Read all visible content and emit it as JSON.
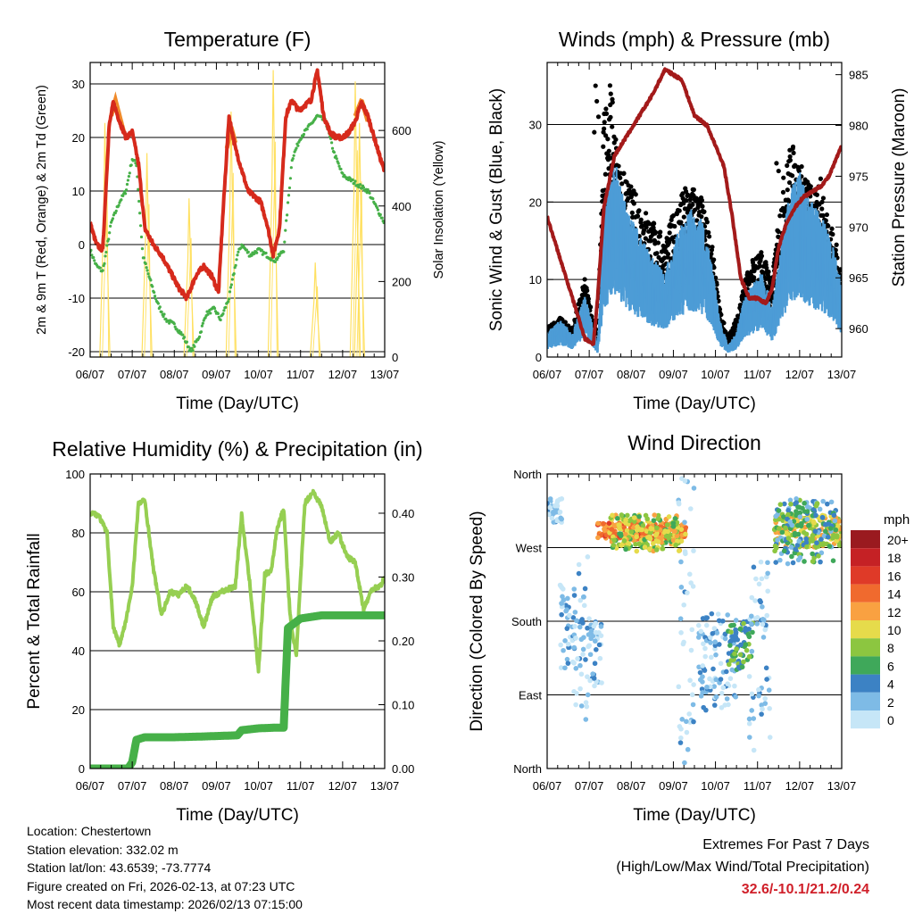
{
  "colors": {
    "temp": "#d62a1c",
    "temp9m": "#f08a2a",
    "dew": "#46b048",
    "solar": "#ffe060",
    "wind": "#4d9cd6",
    "gust": "#000000",
    "pressure": "#a31a1a",
    "rh": "#96cf52",
    "precip": "#46b048",
    "extremes": "#d0202a"
  },
  "time_ticks": [
    "06/07",
    "07/07",
    "08/07",
    "09/07",
    "10/07",
    "11/07",
    "12/07",
    "13/07"
  ],
  "chart_data": [
    {
      "type": "line",
      "id": "temperature",
      "title": "Temperature (F)",
      "xlabel": "Time (Day/UTC)",
      "ylabel": "2m & 9m T (Red, Orange) & 2m Td (Green)",
      "ylabel_right": "Solar Insolation (Yellow)",
      "ylim": [
        -21,
        34
      ],
      "yticks": [
        -20,
        -10,
        0,
        10,
        20,
        30
      ],
      "ylim_right": [
        0,
        780
      ],
      "yticks_right": [
        0,
        200,
        400,
        600
      ],
      "xlim": [
        0,
        7
      ],
      "series": [
        {
          "name": "2m T",
          "color_key": "temp",
          "x": [
            0,
            0.15,
            0.3,
            0.45,
            0.55,
            0.7,
            0.85,
            1.0,
            1.15,
            1.3,
            1.5,
            1.7,
            1.9,
            2.1,
            2.3,
            2.5,
            2.7,
            2.9,
            3.05,
            3.15,
            3.3,
            3.45,
            3.6,
            3.75,
            3.9,
            4.05,
            4.2,
            4.35,
            4.5,
            4.65,
            4.8,
            4.95,
            5.1,
            5.25,
            5.4,
            5.55,
            5.7,
            5.85,
            6.0,
            6.15,
            6.3,
            6.45,
            6.6,
            6.75,
            6.9,
            7.0
          ],
          "values": [
            4,
            0,
            -1,
            22,
            26.5,
            23,
            20,
            21,
            15,
            3,
            0,
            -2,
            -5,
            -8,
            -10,
            -6,
            -4,
            -6,
            -9,
            5,
            24,
            18,
            14,
            10,
            9,
            8,
            4,
            -2,
            3,
            24,
            27,
            25,
            26,
            27,
            32.5,
            24,
            21,
            20,
            20,
            21,
            23,
            26.5,
            24,
            20,
            16,
            13.5
          ]
        },
        {
          "name": "2m Td",
          "color_key": "dew",
          "x": [
            0,
            0.15,
            0.3,
            0.5,
            0.7,
            0.85,
            1.0,
            1.1,
            1.25,
            1.4,
            1.6,
            1.8,
            2.0,
            2.2,
            2.4,
            2.6,
            2.75,
            2.95,
            3.1,
            3.3,
            3.5,
            3.6,
            3.8,
            4.0,
            4.2,
            4.4,
            4.6,
            4.8,
            5.0,
            5.2,
            5.4,
            5.6,
            5.8,
            6.0,
            6.2,
            6.4,
            6.6,
            6.8,
            7.0
          ],
          "values": [
            -1,
            -4,
            -5,
            4,
            8,
            10,
            16,
            15,
            -2,
            -6,
            -11,
            -14,
            -15,
            -17,
            -20,
            -17,
            -13,
            -12,
            -14,
            -10,
            -2,
            0,
            -2,
            -1,
            -2,
            -3,
            -1,
            16,
            20,
            22,
            24,
            23,
            17,
            13,
            12,
            11,
            10,
            7,
            4
          ]
        },
        {
          "name": "9m T",
          "color_key": "temp9m",
          "x": [
            0.5,
            0.6,
            0.7,
            0.8,
            3.25,
            3.35,
            3.45,
            6.3,
            6.45,
            6.6
          ],
          "values": [
            24,
            27,
            24,
            21,
            18,
            22,
            19,
            24,
            27,
            23
          ]
        }
      ],
      "solar_peaks": [
        {
          "x": 0.35,
          "value": 620
        },
        {
          "x": 1.35,
          "value": 540
        },
        {
          "x": 2.35,
          "value": 420
        },
        {
          "x": 3.35,
          "value": 650
        },
        {
          "x": 4.35,
          "value": 760
        },
        {
          "x": 5.35,
          "value": 250
        },
        {
          "x": 6.3,
          "value": 730
        },
        {
          "x": 6.4,
          "value": 620
        }
      ]
    },
    {
      "type": "scatter",
      "id": "winds",
      "title": "Winds (mph) & Pressure (mb)",
      "xlabel": "Time (Day/UTC)",
      "ylabel": "Sonic Wind & Gust (Blue, Black)",
      "ylabel_right": "Station Pressure (Maroon)",
      "ylim": [
        0,
        38
      ],
      "yticks": [
        0,
        10,
        20,
        30
      ],
      "ylim_right": [
        957.2,
        986.2
      ],
      "yticks_right": [
        960,
        965,
        970,
        975,
        980,
        985
      ],
      "xlim": [
        0,
        7
      ],
      "wind_mean": {
        "x": [
          0,
          0.3,
          0.6,
          0.9,
          1.2,
          1.35,
          1.6,
          1.9,
          2.2,
          2.5,
          2.8,
          3.1,
          3.4,
          3.7,
          3.9,
          4.1,
          4.3,
          4.5,
          4.7,
          4.9,
          5.1,
          5.35,
          5.6,
          5.8,
          6.0,
          6.2,
          6.4,
          6.6,
          6.8,
          7.0
        ],
        "values": [
          2,
          3,
          2,
          5,
          1,
          12,
          16,
          12,
          10,
          8,
          7,
          10,
          12,
          11,
          8,
          3,
          1,
          2,
          5,
          6,
          7,
          4,
          10,
          14,
          15,
          13,
          12,
          11,
          9,
          6
        ]
      },
      "gust_mean": {
        "x": [
          0,
          0.3,
          0.6,
          0.9,
          1.2,
          1.35,
          1.5,
          1.7,
          1.9,
          2.2,
          2.5,
          2.8,
          3.1,
          3.4,
          3.7,
          3.9,
          4.1,
          4.3,
          4.5,
          4.7,
          4.9,
          5.1,
          5.35,
          5.6,
          5.8,
          6.0,
          6.2,
          6.4,
          6.6,
          6.8,
          7.0
        ],
        "values": [
          3,
          4,
          3,
          8,
          2,
          25,
          28,
          20,
          18,
          16,
          14,
          12,
          16,
          18,
          16,
          12,
          5,
          2,
          4,
          8,
          10,
          11,
          8,
          18,
          22,
          20,
          18,
          17,
          16,
          13,
          9
        ]
      },
      "pressure": {
        "x": [
          0,
          0.3,
          0.6,
          0.9,
          1.1,
          1.2,
          1.35,
          1.6,
          1.9,
          2.2,
          2.5,
          2.8,
          3.0,
          3.2,
          3.5,
          3.8,
          4.0,
          4.2,
          4.4,
          4.6,
          4.8,
          5.0,
          5.2,
          5.35,
          5.5,
          5.7,
          5.9,
          6.1,
          6.3,
          6.5,
          6.7,
          6.9,
          7.0
        ],
        "values": [
          971,
          967,
          963,
          959,
          958.5,
          963,
          972,
          977,
          979,
          981,
          983,
          985.5,
          985,
          984.5,
          981,
          980,
          978,
          976,
          971,
          965,
          963,
          963,
          962.5,
          964,
          968,
          970.5,
          972,
          973,
          973.5,
          974,
          975,
          977,
          978
        ]
      }
    },
    {
      "type": "line",
      "id": "humidity",
      "title": "Relative Humidity (%) & Precipitation (in)",
      "xlabel": "Time (Day/UTC)",
      "ylabel": "Percent & Total Rainfall",
      "ylim": [
        0,
        100
      ],
      "yticks": [
        0,
        20,
        40,
        60,
        80,
        100
      ],
      "ylim_right": [
        0,
        0.4615
      ],
      "yticks_right": [
        0.0,
        0.1,
        0.2,
        0.3,
        0.4
      ],
      "yticks_right_labels": [
        "0.00",
        "0.10",
        "0.20",
        "0.30",
        "0.40"
      ],
      "xlim": [
        0,
        7
      ],
      "series": [
        {
          "name": "Relative Humidity",
          "color_key": "rh",
          "x": [
            0,
            0.2,
            0.4,
            0.55,
            0.7,
            0.85,
            1.0,
            1.15,
            1.3,
            1.5,
            1.7,
            1.9,
            2.1,
            2.3,
            2.5,
            2.7,
            2.9,
            3.1,
            3.3,
            3.45,
            3.6,
            3.8,
            4.0,
            4.15,
            4.3,
            4.45,
            4.6,
            4.75,
            4.9,
            5.1,
            5.3,
            5.5,
            5.7,
            5.9,
            6.1,
            6.3,
            6.5,
            6.7,
            6.9,
            7.0
          ],
          "values": [
            87,
            86,
            80,
            48,
            42,
            50,
            62,
            90,
            91,
            68,
            52,
            60,
            59,
            62,
            57,
            48,
            58,
            60,
            61,
            62,
            86,
            62,
            33,
            66,
            67,
            82,
            88,
            52,
            38,
            90,
            94,
            89,
            77,
            80,
            72,
            70,
            54,
            61,
            62,
            65
          ]
        },
        {
          "name": "Total Precipitation",
          "color_key": "precip",
          "axis": "right",
          "x": [
            0,
            0.9,
            1.0,
            1.1,
            1.3,
            2.0,
            2.6,
            3.5,
            3.6,
            4.0,
            4.4,
            4.6,
            4.7,
            5.0,
            5.5,
            6.0,
            7.0
          ],
          "values": [
            0,
            0,
            0.01,
            0.045,
            0.049,
            0.049,
            0.05,
            0.052,
            0.06,
            0.063,
            0.064,
            0.064,
            0.22,
            0.235,
            0.24,
            0.24,
            0.24
          ]
        }
      ]
    },
    {
      "type": "scatter",
      "id": "direction",
      "title": "Wind Direction",
      "xlabel": "Time (Day/UTC)",
      "ylabel": "Direction (Colored By Speed)",
      "ylim": [
        0,
        360
      ],
      "yticks": [
        0,
        90,
        180,
        270,
        360
      ],
      "ytick_labels": [
        "North",
        "East",
        "South",
        "West",
        "North"
      ],
      "xlim": [
        0,
        7
      ],
      "clusters": [
        {
          "x": [
            0,
            0.35
          ],
          "dir": [
            300,
            330
          ],
          "speed": 1.5
        },
        {
          "x": [
            0.3,
            0.65
          ],
          "dir": [
            120,
            230
          ],
          "speed": 2.5
        },
        {
          "x": [
            0.6,
            1.0
          ],
          "dir": [
            60,
            260
          ],
          "speed": 1.5
        },
        {
          "x": [
            1.0,
            1.3
          ],
          "dir": [
            100,
            180
          ],
          "speed": 2
        },
        {
          "x": [
            1.2,
            3.3
          ],
          "dir": [
            280,
            300
          ],
          "speed": 14
        },
        {
          "x": [
            1.5,
            3.2
          ],
          "dir": [
            265,
            310
          ],
          "speed": 10
        },
        {
          "x": [
            3.1,
            3.5
          ],
          "dir": [
            0,
            360
          ],
          "speed": 1.5
        },
        {
          "x": [
            3.6,
            4.5
          ],
          "dir": [
            70,
            190
          ],
          "speed": 3
        },
        {
          "x": [
            4.3,
            4.9
          ],
          "dir": [
            120,
            180
          ],
          "speed": 7
        },
        {
          "x": [
            4.8,
            5.3
          ],
          "dir": [
            20,
            260
          ],
          "speed": 2
        },
        {
          "x": [
            5.4,
            7.0
          ],
          "dir": [
            270,
            310
          ],
          "speed": 11
        },
        {
          "x": [
            5.4,
            6.9
          ],
          "dir": [
            250,
            330
          ],
          "speed": 6
        }
      ],
      "colorbar": {
        "title": "mph",
        "labels": [
          "20+",
          "18",
          "16",
          "14",
          "12",
          "10",
          "8",
          "6",
          "4",
          "2",
          "0"
        ],
        "colors": [
          "#9a1a1f",
          "#c52125",
          "#df3a28",
          "#f06a2e",
          "#f9a141",
          "#e6db4b",
          "#8cc640",
          "#3fa85a",
          "#3c82c4",
          "#7ebbe6",
          "#c6e6f7"
        ]
      }
    }
  ],
  "station": {
    "location": "Location: Chestertown",
    "elevation": "Station elevation: 332.02 m",
    "latlon": "Station lat/lon: 43.6539; -73.7774",
    "created": "Figure created on Fri, 2026-02-13, at 07:23 UTC",
    "recent": "Most recent data timestamp: 2026/02/13 07:15:00"
  },
  "extremes": {
    "title": "Extremes For Past 7 Days",
    "subtitle": "(High/Low/Max Wind/Total Precipitation)",
    "value": "32.6/-10.1/21.2/0.24"
  }
}
